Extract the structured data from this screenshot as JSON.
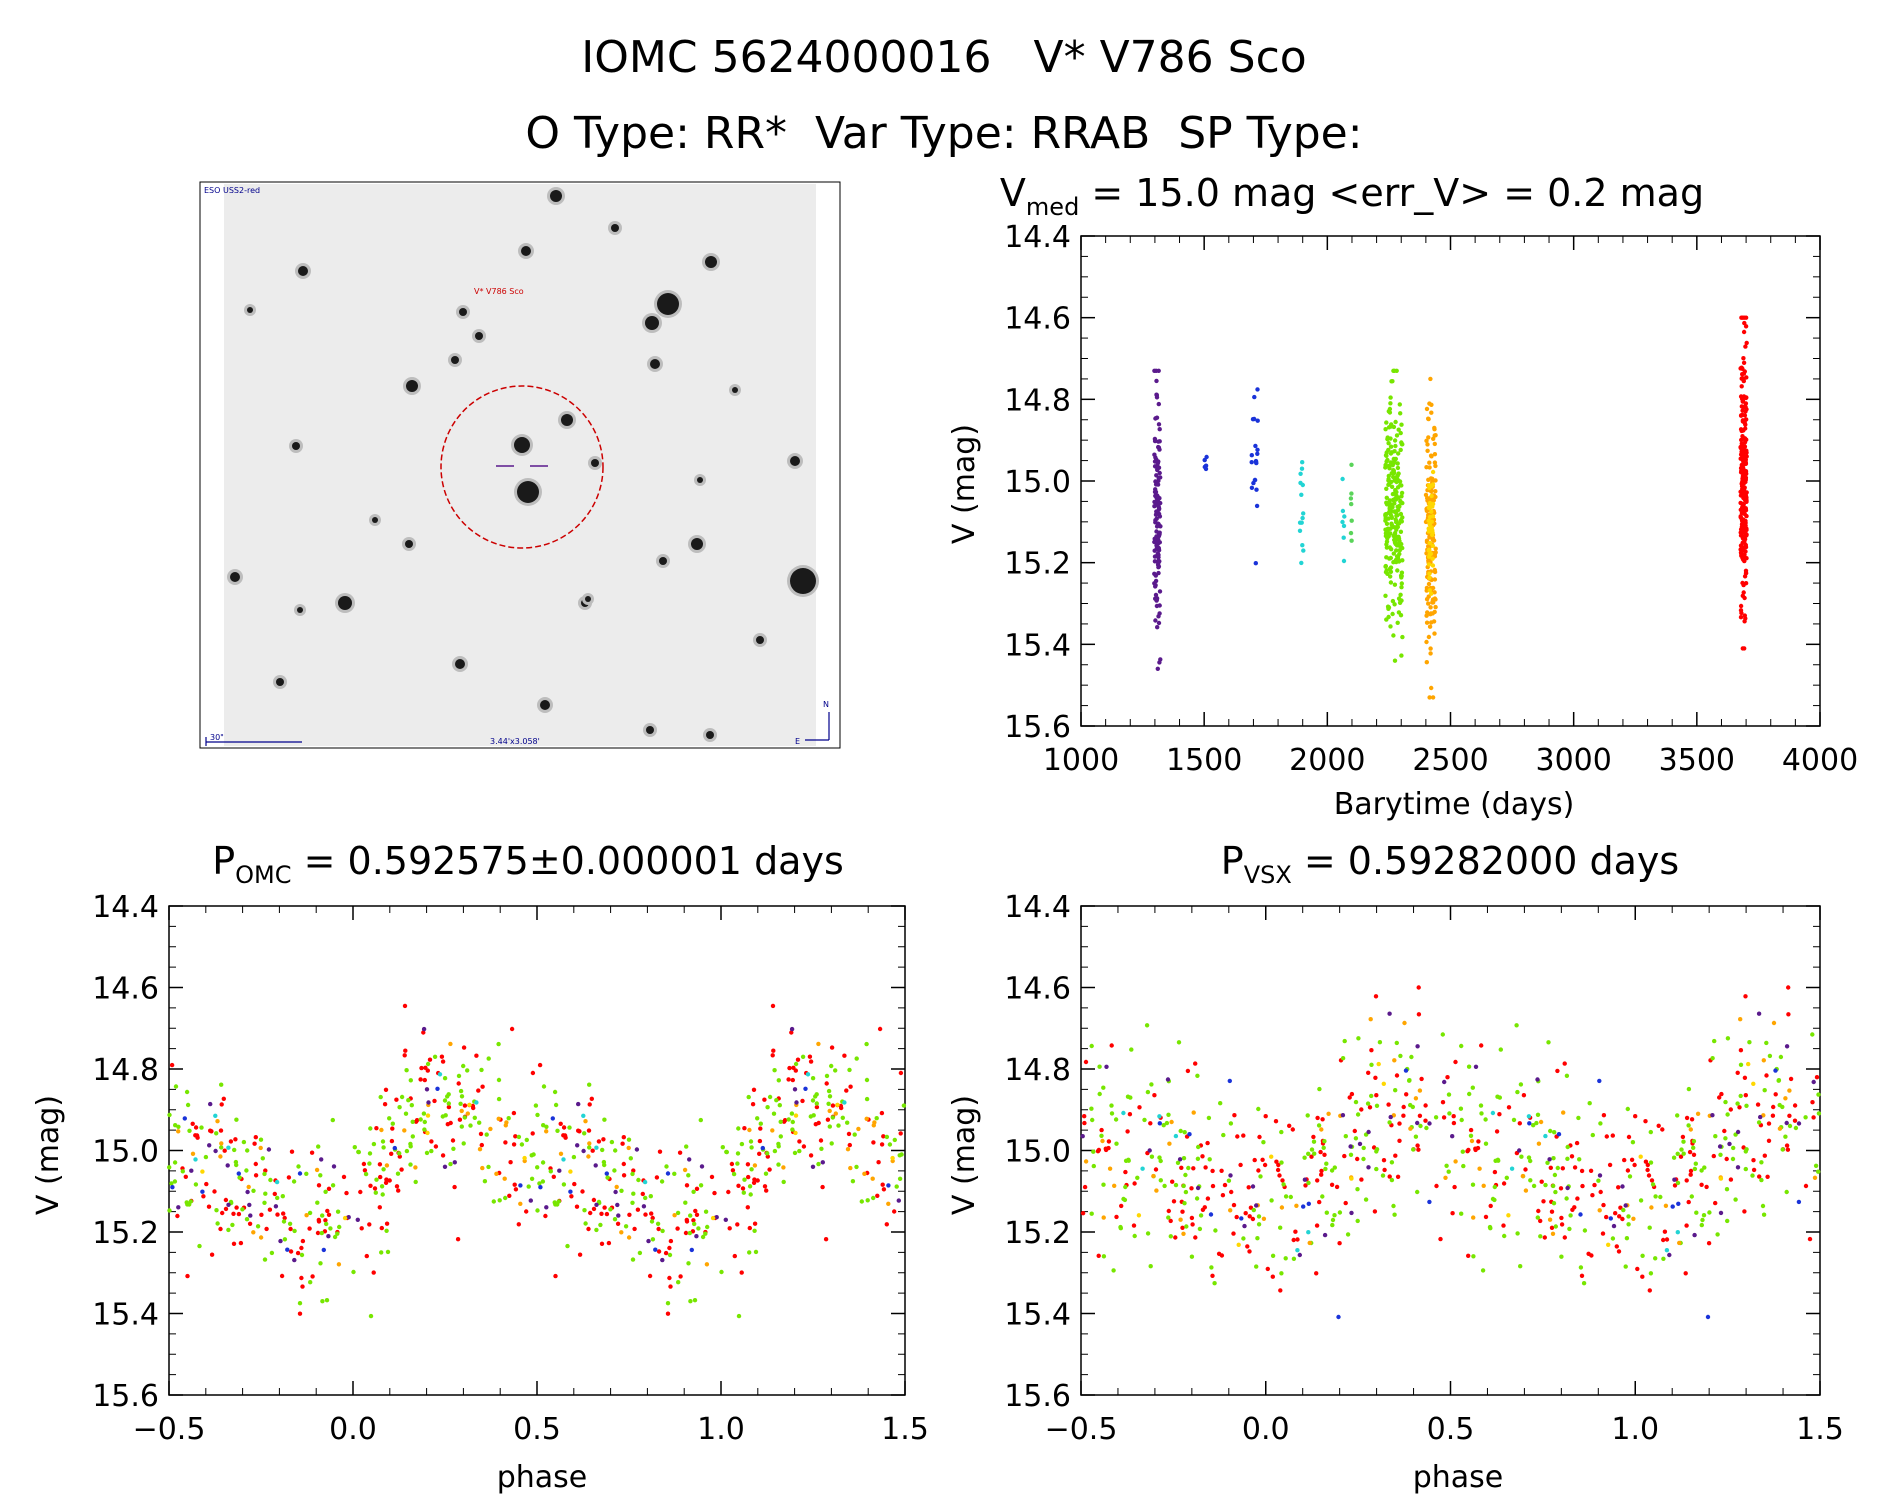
{
  "figure": {
    "title_line1": "IOMC 5624000016   V* V786 Sco",
    "title_line2": "O Type: RR*  Var Type: RRAB  SP Type:"
  },
  "image_panel": {
    "survey_label": "ESO USS2-red",
    "target_label": "V* V786 Sco",
    "scale_label": "30\"",
    "fov_label": "3.44'x3.058'",
    "compass_north": "N",
    "compass_east": "E",
    "colors": {
      "target": "#cc0000",
      "annotation": "#00008b",
      "background": "#ececec"
    }
  },
  "chart_data": [
    {
      "type": "scatter",
      "panel": "lightcurve",
      "title_main": "V",
      "title_sub": "med",
      "title_rest": " = 15.0 mag <err_V> = 0.2 mag",
      "xlabel": "Barytime (days)",
      "ylabel": "V (mag)",
      "xlim": [
        1000,
        4000
      ],
      "ylim": [
        15.6,
        14.4
      ],
      "y_inverted": true,
      "xticks": [
        1000,
        1500,
        2000,
        2500,
        3000,
        3500,
        4000
      ],
      "yticks": [
        14.4,
        14.6,
        14.8,
        15.0,
        15.2,
        15.4,
        15.6
      ],
      "xtick_labels": [
        "1000",
        "1500",
        "2000",
        "2500",
        "3000",
        "3500",
        "4000"
      ],
      "ytick_labels": [
        "14.4",
        "14.6",
        "14.8",
        "15.0",
        "15.2",
        "15.4",
        "15.6"
      ],
      "groups": [
        {
          "t": 1310,
          "width": 25,
          "n": 130,
          "color": "#5a1a8c",
          "ymin": 14.73,
          "ymax": 15.46
        },
        {
          "t": 1505,
          "width": 12,
          "n": 6,
          "color": "#1a33d9",
          "ymin": 14.94,
          "ymax": 14.98
        },
        {
          "t": 1705,
          "width": 25,
          "n": 20,
          "color": "#1a33d9",
          "ymin": 14.72,
          "ymax": 15.22
        },
        {
          "t": 1895,
          "width": 15,
          "n": 14,
          "color": "#22d4d4",
          "ymin": 14.85,
          "ymax": 15.24
        },
        {
          "t": 2065,
          "width": 10,
          "n": 7,
          "color": "#22d4d4",
          "ymin": 14.93,
          "ymax": 15.27
        },
        {
          "t": 2095,
          "width": 10,
          "n": 7,
          "color": "#5ad45a",
          "ymin": 14.84,
          "ymax": 15.37
        },
        {
          "t": 2270,
          "width": 70,
          "n": 240,
          "color": "#77e600",
          "ymin": 14.73,
          "ymax": 15.44
        },
        {
          "t": 2420,
          "width": 40,
          "n": 160,
          "color": "#ffa500",
          "ymin": 14.75,
          "ymax": 15.53
        },
        {
          "t": 2420,
          "width": 20,
          "n": 40,
          "color": "#ffd700",
          "ymin": 14.95,
          "ymax": 15.3
        },
        {
          "t": 3690,
          "width": 25,
          "n": 240,
          "color": "#ff0000",
          "ymin": 14.6,
          "ymax": 15.41
        }
      ]
    },
    {
      "type": "scatter",
      "panel": "phase_omc",
      "title_main": "P",
      "title_sub": "OMC",
      "title_rest": " = 0.592575±0.000001 days",
      "xlabel": "phase",
      "ylabel": "V (mag)",
      "period": 0.592575,
      "xlim": [
        -0.5,
        1.5
      ],
      "ylim": [
        15.6,
        14.4
      ],
      "y_inverted": true,
      "xticks": [
        -0.5,
        0.0,
        0.5,
        1.0,
        1.5
      ],
      "yticks": [
        14.4,
        14.6,
        14.8,
        15.0,
        15.2,
        15.4,
        15.6
      ],
      "xtick_labels": [
        "−0.5",
        "0.0",
        "0.5",
        "1.0",
        "1.5"
      ],
      "ytick_labels": [
        "14.4",
        "14.6",
        "14.8",
        "15.0",
        "15.2",
        "15.4",
        "15.6"
      ],
      "model": {
        "mean": 15.03,
        "amplitude": 0.16,
        "max_phase": 0.2,
        "min_phase": 0.95,
        "scatter": 0.1
      },
      "point_counts": {
        "#ff0000": 160,
        "#77e600": 170,
        "#ffa500": 30,
        "#5a1a8c": 25,
        "#1a33d9": 10,
        "#22d4d4": 6,
        "#ffd700": 6
      }
    },
    {
      "type": "scatter",
      "panel": "phase_vsx",
      "title_main": "P",
      "title_sub": "VSX",
      "title_rest": " = 0.59282000 days",
      "xlabel": "phase",
      "ylabel": "V (mag)",
      "period": 0.59282,
      "xlim": [
        -0.5,
        1.5
      ],
      "ylim": [
        15.6,
        14.4
      ],
      "y_inverted": true,
      "xticks": [
        -0.5,
        0.0,
        0.5,
        1.0,
        1.5
      ],
      "yticks": [
        14.4,
        14.6,
        14.8,
        15.0,
        15.2,
        15.4,
        15.6
      ],
      "xtick_labels": [
        "−0.5",
        "0.0",
        "0.5",
        "1.0",
        "1.5"
      ],
      "ytick_labels": [
        "14.4",
        "14.6",
        "14.8",
        "15.0",
        "15.2",
        "15.4",
        "15.6"
      ],
      "model": {
        "mean": 15.03,
        "amplitude": 0.12,
        "max_phase": 0.33,
        "min_phase": 1.05,
        "scatter": 0.12
      },
      "point_counts": {
        "#ff0000": 160,
        "#77e600": 170,
        "#ffa500": 30,
        "#5a1a8c": 25,
        "#1a33d9": 10,
        "#22d4d4": 6,
        "#ffd700": 6
      }
    }
  ]
}
